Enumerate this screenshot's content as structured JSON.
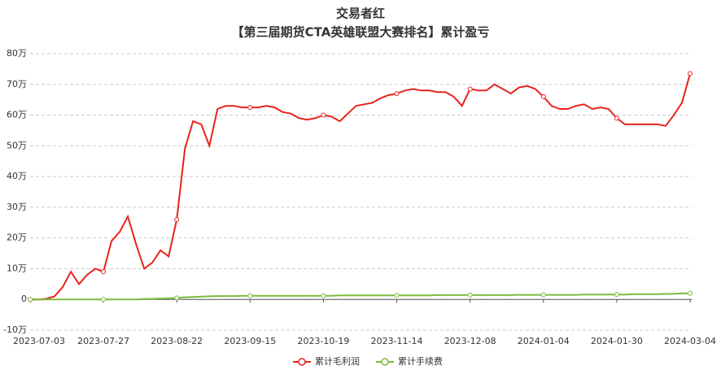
{
  "chart_data": {
    "type": "line",
    "title": "交易者红",
    "subtitle": "【第三届期货CTA英雄联盟大赛排名】累计盈亏",
    "categories": [
      "2023-07-03",
      null,
      null,
      null,
      null,
      null,
      null,
      null,
      null,
      "2023-07-27",
      null,
      null,
      null,
      null,
      null,
      null,
      null,
      null,
      "2023-08-22",
      null,
      null,
      null,
      null,
      null,
      null,
      null,
      null,
      "2023-09-15",
      null,
      null,
      null,
      null,
      null,
      null,
      null,
      null,
      "2023-10-19",
      null,
      null,
      null,
      null,
      null,
      null,
      null,
      null,
      "2023-11-14",
      null,
      null,
      null,
      null,
      null,
      null,
      null,
      null,
      "2023-12-08",
      null,
      null,
      null,
      null,
      null,
      null,
      null,
      null,
      "2024-01-04",
      null,
      null,
      null,
      null,
      null,
      null,
      null,
      null,
      "2024-01-30",
      null,
      null,
      null,
      null,
      null,
      null,
      null,
      null,
      "2024-03-04"
    ],
    "series": [
      {
        "name": "累计毛利润",
        "color": "#e8231b",
        "values": [
          0,
          0,
          0.2,
          1,
          4,
          9,
          5,
          8,
          10,
          9,
          19,
          22,
          27,
          18,
          10,
          12,
          16,
          14,
          26,
          49,
          58,
          57,
          50,
          62,
          63,
          63,
          62.5,
          62.5,
          62.5,
          63,
          62.5,
          61,
          60.5,
          59,
          58.5,
          59,
          60,
          59.5,
          58,
          60.5,
          63,
          63.5,
          64,
          65.5,
          66.5,
          67,
          68,
          68.5,
          68,
          68,
          67.5,
          67.5,
          66,
          63,
          68.5,
          68,
          68,
          70,
          68.5,
          67,
          69,
          69.5,
          68.5,
          66,
          63,
          62,
          62,
          63,
          63.5,
          62,
          62.5,
          62,
          59,
          57,
          57,
          57,
          57,
          57,
          56.5,
          60,
          64,
          73.5
        ]
      },
      {
        "name": "累计手续费",
        "color": "#7cbb3c",
        "values": [
          0,
          0,
          0,
          0,
          0,
          0,
          0,
          0,
          0,
          0,
          0,
          0,
          0,
          0,
          0.1,
          0.2,
          0.3,
          0.4,
          0.5,
          0.7,
          0.8,
          0.9,
          1.0,
          1.1,
          1.1,
          1.1,
          1.2,
          1.2,
          1.2,
          1.2,
          1.2,
          1.2,
          1.2,
          1.2,
          1.2,
          1.2,
          1.2,
          1.2,
          1.3,
          1.3,
          1.3,
          1.3,
          1.3,
          1.3,
          1.3,
          1.3,
          1.3,
          1.3,
          1.3,
          1.3,
          1.4,
          1.4,
          1.4,
          1.4,
          1.4,
          1.4,
          1.4,
          1.4,
          1.4,
          1.4,
          1.5,
          1.5,
          1.5,
          1.5,
          1.5,
          1.5,
          1.5,
          1.5,
          1.6,
          1.6,
          1.6,
          1.6,
          1.6,
          1.6,
          1.7,
          1.7,
          1.7,
          1.7,
          1.8,
          1.8,
          2,
          2
        ]
      }
    ],
    "ylim": [
      -10,
      80
    ],
    "yticks": [
      {
        "value": -10,
        "label": "-10万"
      },
      {
        "value": 0,
        "label": "0"
      },
      {
        "value": 10,
        "label": "10万"
      },
      {
        "value": 20,
        "label": "20万"
      },
      {
        "value": 30,
        "label": "30万"
      },
      {
        "value": 40,
        "label": "40万"
      },
      {
        "value": 50,
        "label": "50万"
      },
      {
        "value": 60,
        "label": "60万"
      },
      {
        "value": 70,
        "label": "70万"
      },
      {
        "value": 80,
        "label": "80万"
      }
    ],
    "grid": true,
    "legend": "bottom"
  }
}
